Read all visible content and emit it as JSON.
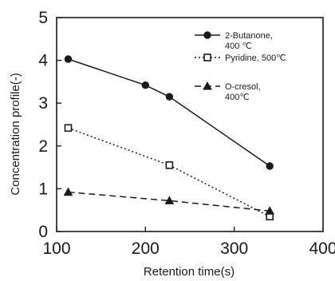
{
  "chart_data": {
    "type": "line",
    "title": "",
    "xlabel": "Retention time(s)",
    "ylabel": "Concentration profile(-)",
    "xlim": [
      100,
      400
    ],
    "ylim": [
      0,
      5
    ],
    "x_ticks": [
      "100",
      "200",
      "300",
      "400"
    ],
    "y_ticks": [
      "0",
      "1",
      "2",
      "3",
      "4",
      "5"
    ],
    "grid": false,
    "legend_position": "top-right",
    "series": [
      {
        "name": "2-Butanone,",
        "name_line2": "400 ℃",
        "marker": "filled-circle",
        "line_style": "solid",
        "color": "#1a1a1a",
        "x": [
          113,
          200,
          227,
          340
        ],
        "y": [
          4.03,
          3.42,
          3.15,
          1.53
        ]
      },
      {
        "name": "Pyridine, 500℃",
        "marker": "open-square",
        "line_style": "dotted",
        "color": "#1a1a1a",
        "x": [
          113,
          227,
          340
        ],
        "y": [
          2.42,
          1.55,
          0.35
        ]
      },
      {
        "name": "O-cresol,",
        "name_line2": "400℃",
        "marker": "filled-triangle",
        "line_style": "dashed",
        "color": "#1a1a1a",
        "x": [
          113,
          227,
          340
        ],
        "y": [
          0.92,
          0.72,
          0.48
        ]
      }
    ]
  }
}
